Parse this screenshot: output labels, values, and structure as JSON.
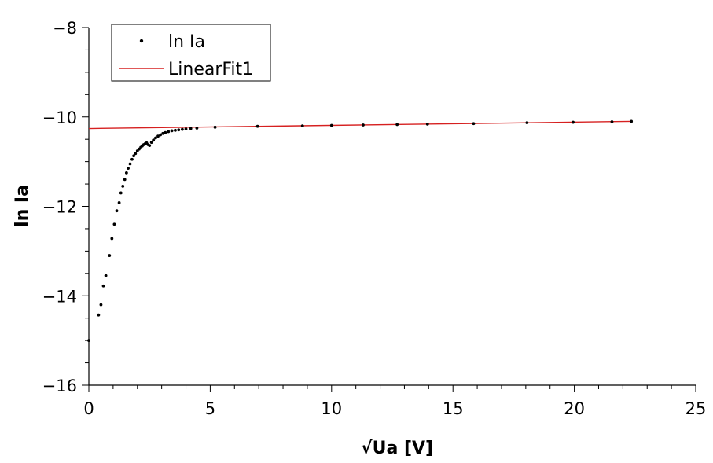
{
  "chart_data": {
    "type": "scatter",
    "xlabel": "√Ua [V]",
    "ylabel": "ln Ia",
    "xlim": [
      0,
      25
    ],
    "ylim": [
      -16,
      -8
    ],
    "x_ticks": [
      0,
      5,
      10,
      15,
      20,
      25
    ],
    "y_ticks": [
      -8,
      -10,
      -12,
      -14,
      -16
    ],
    "x_minor_step": 1,
    "y_minor_step": 0.5,
    "grid": false,
    "legend_position": "top-left",
    "series": [
      {
        "name": "ln Ia",
        "kind": "points",
        "color": "#000000",
        "x": [
          0.0,
          0.4,
          0.5,
          0.6,
          0.7,
          0.85,
          0.95,
          1.05,
          1.15,
          1.25,
          1.32,
          1.4,
          1.48,
          1.55,
          1.62,
          1.7,
          1.78,
          1.85,
          1.92,
          2.0,
          2.07,
          2.14,
          2.2,
          2.26,
          2.32,
          2.38,
          2.44,
          2.5,
          2.58,
          2.66,
          2.75,
          2.85,
          2.95,
          3.05,
          3.15,
          3.28,
          3.42,
          3.56,
          3.7,
          3.85,
          4.0,
          4.2,
          4.45,
          5.2,
          6.95,
          8.8,
          10.0,
          11.3,
          12.7,
          13.95,
          15.85,
          18.05,
          19.95,
          21.55,
          22.35
        ],
        "y": [
          -15.0,
          -14.43,
          -14.2,
          -13.78,
          -13.55,
          -13.1,
          -12.72,
          -12.4,
          -12.1,
          -11.92,
          -11.7,
          -11.55,
          -11.4,
          -11.25,
          -11.15,
          -11.05,
          -10.95,
          -10.87,
          -10.82,
          -10.76,
          -10.72,
          -10.68,
          -10.65,
          -10.62,
          -10.6,
          -10.58,
          -10.62,
          -10.64,
          -10.57,
          -10.52,
          -10.47,
          -10.43,
          -10.4,
          -10.37,
          -10.35,
          -10.33,
          -10.31,
          -10.3,
          -10.29,
          -10.28,
          -10.27,
          -10.26,
          -10.25,
          -10.23,
          -10.21,
          -10.2,
          -10.19,
          -10.18,
          -10.17,
          -10.16,
          -10.15,
          -10.13,
          -10.12,
          -10.11,
          -10.1
        ]
      },
      {
        "name": "LinearFit1",
        "kind": "line",
        "color": "#d62020",
        "x": [
          0,
          22.35
        ],
        "y": [
          -10.26,
          -10.1
        ]
      }
    ]
  }
}
